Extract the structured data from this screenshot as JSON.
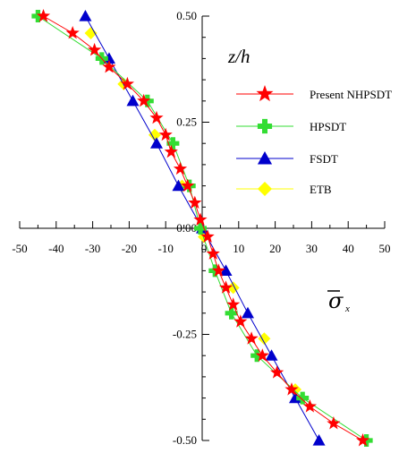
{
  "chart_data": {
    "type": "line",
    "xlabel_symbol": "σ",
    "xlabel_subscript": "x",
    "ylabel": "z/h",
    "xlim": [
      -50,
      50
    ],
    "ylim": [
      -0.5,
      0.5
    ],
    "x_ticks": [
      "-50",
      "-40",
      "-30",
      "-20",
      "-10",
      "0",
      "10",
      "20",
      "30",
      "40",
      "50"
    ],
    "y_ticks": [
      "0.50",
      "0.25",
      "0.00",
      "-0.25",
      "-0.50"
    ],
    "grid": false,
    "legend_position": "right",
    "series": [
      {
        "name": "Present NHPSDT",
        "color": "#ff0000",
        "marker": "star",
        "points": [
          [
            -43.5,
            0.5
          ],
          [
            -35.5,
            0.46
          ],
          [
            -29.5,
            0.42
          ],
          [
            -25.5,
            0.38
          ],
          [
            -20.5,
            0.34
          ],
          [
            -16.0,
            0.3
          ],
          [
            -12.5,
            0.26
          ],
          [
            -10.0,
            0.22
          ],
          [
            -8.5,
            0.18
          ],
          [
            -6.0,
            0.14
          ],
          [
            -4.0,
            0.1
          ],
          [
            -2.0,
            0.06
          ],
          [
            -0.5,
            0.02
          ],
          [
            1.5,
            -0.02
          ],
          [
            3.0,
            -0.06
          ],
          [
            4.5,
            -0.1
          ],
          [
            6.5,
            -0.14
          ],
          [
            8.5,
            -0.18
          ],
          [
            10.5,
            -0.22
          ],
          [
            13.5,
            -0.26
          ],
          [
            16.5,
            -0.3
          ],
          [
            20.5,
            -0.34
          ],
          [
            24.5,
            -0.38
          ],
          [
            29.5,
            -0.42
          ],
          [
            36.0,
            -0.46
          ],
          [
            44.0,
            -0.5
          ]
        ]
      },
      {
        "name": "HPSDT",
        "color": "#33dd33",
        "marker": "plus",
        "points": [
          [
            -45.0,
            0.5
          ],
          [
            -27.5,
            0.4
          ],
          [
            -15.0,
            0.3
          ],
          [
            -8.0,
            0.2
          ],
          [
            -3.5,
            0.1
          ],
          [
            -0.5,
            0.0
          ],
          [
            3.5,
            -0.1
          ],
          [
            8.0,
            -0.2
          ],
          [
            15.0,
            -0.3
          ],
          [
            27.5,
            -0.4
          ],
          [
            45.0,
            -0.5
          ]
        ]
      },
      {
        "name": "FSDT",
        "color": "#0000cc",
        "marker": "triangle",
        "points": [
          [
            -32.0,
            0.5
          ],
          [
            -25.5,
            0.4
          ],
          [
            -19.0,
            0.3
          ],
          [
            -12.5,
            0.2
          ],
          [
            -6.5,
            0.1
          ],
          [
            0.0,
            0.0
          ],
          [
            6.5,
            -0.1
          ],
          [
            12.5,
            -0.2
          ],
          [
            19.0,
            -0.3
          ],
          [
            25.5,
            -0.4
          ],
          [
            32.0,
            -0.5
          ]
        ]
      },
      {
        "name": "ETB",
        "color": "#ffff00",
        "marker": "diamond",
        "points": [
          [
            -30.5,
            0.46
          ],
          [
            -21.5,
            0.34
          ],
          [
            -13.0,
            0.22
          ],
          [
            -5.5,
            0.1
          ],
          [
            0.5,
            -0.02
          ],
          [
            8.5,
            -0.14
          ],
          [
            17.0,
            -0.26
          ],
          [
            25.5,
            -0.38
          ]
        ]
      }
    ]
  }
}
